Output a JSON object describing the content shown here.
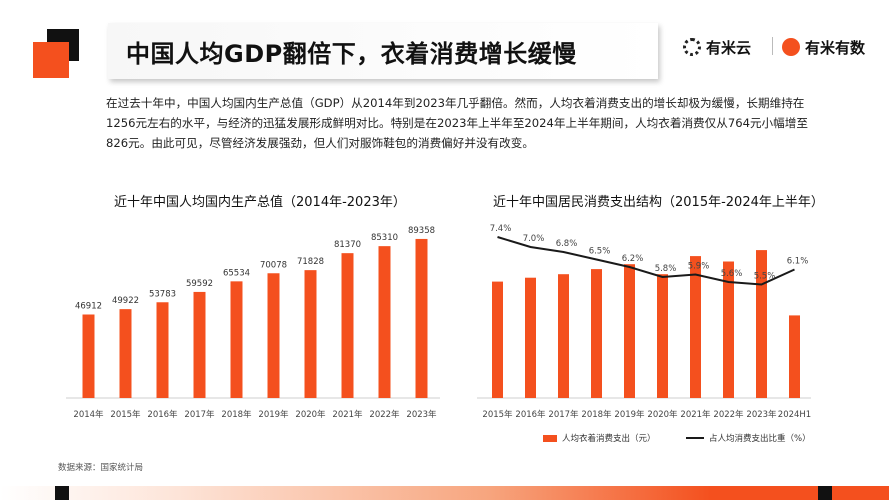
{
  "header": {
    "title": "中国人均GDP翻倍下，衣着消费增长缓慢",
    "brand1": "有米云",
    "brand2": "有米有数"
  },
  "intro": "在过去十年中，中国人均国内生产总值（GDP）从2014年到2023年几乎翻倍。然而，人均衣着消费支出的增长却极为缓慢，长期维持在1256元左右的水平，与经济的迅猛发展形成鲜明对比。特别是在2023年上半年至2024年上半年期间，人均衣着消费仅从764元小幅增至826元。由此可见，尽管经济发展强劲，但人们对服饰鞋包的消费偏好并没有改变。",
  "source": "数据来源：国家统计局",
  "colors": {
    "accent": "#f4501e",
    "line": "#1a1a1a"
  },
  "chart_data": [
    {
      "type": "bar",
      "title": "近十年中国人均国内生产总值（2014年-2023年）",
      "categories": [
        "2014年",
        "2015年",
        "2016年",
        "2017年",
        "2018年",
        "2019年",
        "2020年",
        "2021年",
        "2022年",
        "2023年"
      ],
      "values": [
        46912,
        49922,
        53783,
        59592,
        65534,
        70078,
        71828,
        81370,
        85310,
        89358
      ],
      "ylim": [
        0,
        100000
      ],
      "grid": false,
      "legend": "none"
    },
    {
      "type": "bar",
      "title": "近十年中国居民消费支出结构（2015年-2024年上半年）",
      "categories": [
        "2015年",
        "2016年",
        "2017年",
        "2018年",
        "2019年",
        "2020年",
        "2021年",
        "2022年",
        "2023年",
        "2024H1"
      ],
      "series": [
        {
          "name": "人均衣着消费支出（元）",
          "type": "bar",
          "values": [
            1164,
            1203,
            1238,
            1289,
            1338,
            1238,
            1419,
            1365,
            1479,
            826
          ]
        },
        {
          "name": "占人均消费支出比重（%）",
          "type": "line",
          "values": [
            7.4,
            7.0,
            6.8,
            6.5,
            6.2,
            5.8,
            5.9,
            5.6,
            5.5,
            6.1
          ],
          "labels": [
            "7.4%",
            "7.0%",
            "6.8%",
            "6.5%",
            "6.2%",
            "5.8%",
            "5.9%",
            "5.6%",
            "5.5%",
            "6.1%"
          ]
        }
      ],
      "grid": false,
      "legend": "bottom"
    }
  ]
}
